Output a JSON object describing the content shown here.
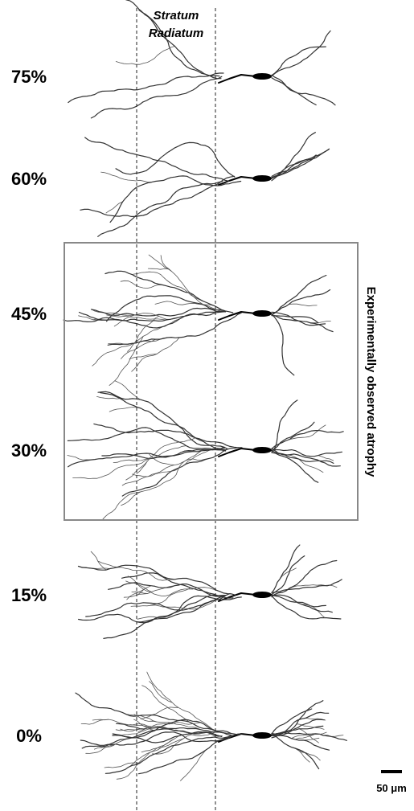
{
  "region_label": {
    "line1": "Stratum",
    "line2": "Radiatum"
  },
  "rows": [
    {
      "label": "75%"
    },
    {
      "label": "60%"
    },
    {
      "label": "45%"
    },
    {
      "label": "30%"
    },
    {
      "label": "15%"
    },
    {
      "label": "0%"
    }
  ],
  "box_label": "Experimentally observed atrophy",
  "scale_bar": {
    "label": "50 μm"
  }
}
